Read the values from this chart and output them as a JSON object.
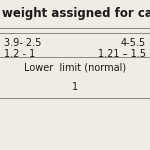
{
  "title": "weight assigned for calcula",
  "rows": [
    [
      "3.9- 2.5",
      "4-5.5"
    ],
    [
      "1.2 - 1",
      "1.21 – 1.5"
    ]
  ],
  "label_row": "Lower  limit (normal)",
  "value_row": "1",
  "bg_color": "#f0ece4",
  "line_color": "#888880",
  "title_fontsize": 8.5,
  "cell_fontsize": 7.0,
  "label_fontsize": 7.0
}
